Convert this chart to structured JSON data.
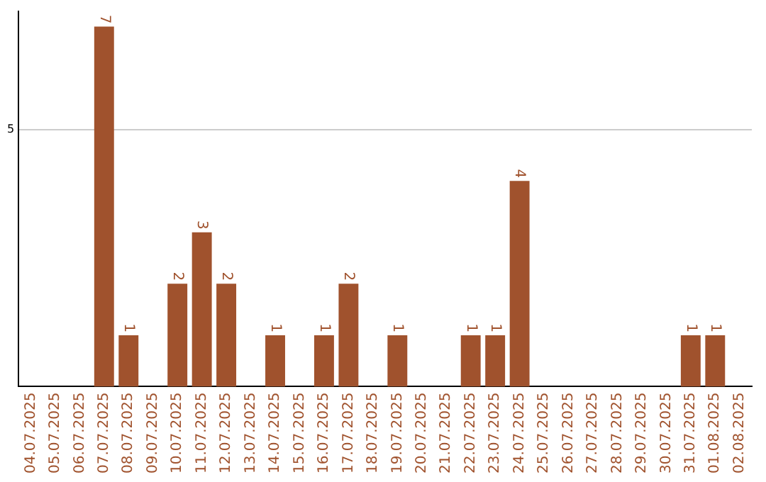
{
  "chart_data": {
    "type": "bar",
    "categories": [
      "04.07.2025",
      "05.07.2025",
      "06.07.2025",
      "07.07.2025",
      "08.07.2025",
      "09.07.2025",
      "10.07.2025",
      "11.07.2025",
      "12.07.2025",
      "13.07.2025",
      "14.07.2025",
      "15.07.2025",
      "16.07.2025",
      "17.07.2025",
      "18.07.2025",
      "19.07.2025",
      "20.07.2025",
      "21.07.2025",
      "22.07.2025",
      "23.07.2025",
      "24.07.2025",
      "25.07.2025",
      "26.07.2025",
      "27.07.2025",
      "28.07.2025",
      "29.07.2025",
      "30.07.2025",
      "31.07.2025",
      "01.08.2025",
      "02.08.2025"
    ],
    "values": [
      0,
      0,
      0,
      7,
      1,
      0,
      2,
      3,
      2,
      0,
      1,
      0,
      1,
      2,
      0,
      1,
      0,
      0,
      1,
      1,
      4,
      0,
      0,
      0,
      0,
      0,
      0,
      1,
      1,
      0
    ],
    "value_labels": [
      null,
      null,
      null,
      "7",
      "1",
      null,
      "2",
      "3",
      "2",
      null,
      "1",
      null,
      "1",
      "2",
      null,
      "1",
      null,
      null,
      "1",
      "1",
      "4",
      null,
      null,
      null,
      null,
      null,
      null,
      "1",
      "1",
      null
    ],
    "color": "#a0522d",
    "ylim": [
      0,
      7.3
    ],
    "yticks": [
      5
    ],
    "grid": "y",
    "legend": false
  }
}
